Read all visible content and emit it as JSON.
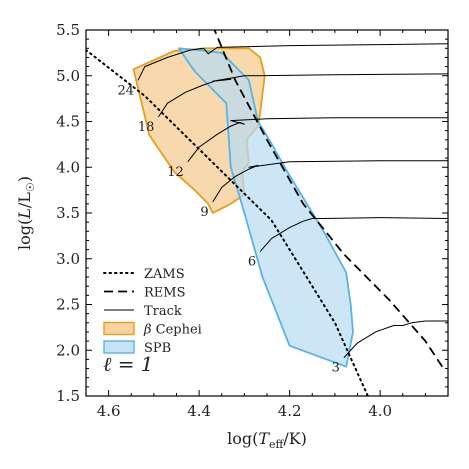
{
  "chart_data": {
    "type": "line",
    "xlabel": "log(T_eff/K)",
    "ylabel": "log(L/L☉)",
    "xlim": [
      4.65,
      3.85
    ],
    "ylim": [
      1.5,
      5.5
    ],
    "x_reversed": true,
    "xticks": [
      4.6,
      4.4,
      4.2,
      4.0
    ],
    "xtick_labels": [
      "4.6",
      "4.4",
      "4.2",
      "4.0"
    ],
    "yticks": [
      1.5,
      2.0,
      2.5,
      3.0,
      3.5,
      4.0,
      4.5,
      5.0,
      5.5
    ],
    "ytick_labels": [
      "1.5",
      "2.0",
      "2.5",
      "3.0",
      "3.5",
      "4.0",
      "4.5",
      "5.0",
      "5.5"
    ],
    "annotation": "ℓ = 1",
    "legend": {
      "placement": "bottom-left",
      "entries": [
        {
          "label": "ZAMS",
          "style": "dotted"
        },
        {
          "label": "REMS",
          "style": "dashed"
        },
        {
          "label": "Track",
          "style": "solid"
        },
        {
          "label": "β Cephei",
          "style": "patch",
          "fill": "#f5c78a",
          "edge": "#e3a020"
        },
        {
          "label": "SPB",
          "style": "patch",
          "fill": "#b7dcf2",
          "edge": "#5ab3e3"
        }
      ]
    },
    "series": [
      {
        "name": "ZAMS",
        "style": "dotted",
        "x": [
          4.66,
          4.52,
          4.38,
          4.24,
          4.1,
          4.02
        ],
        "y": [
          5.32,
          4.78,
          4.1,
          3.42,
          2.3,
          1.42
        ]
      },
      {
        "name": "REMS",
        "style": "dashed",
        "x": [
          4.37,
          4.32,
          4.25,
          4.17,
          4.08,
          3.98,
          3.9,
          3.86
        ],
        "y": [
          5.55,
          4.95,
          4.3,
          3.6,
          3.05,
          2.55,
          2.1,
          1.8
        ]
      },
      {
        "name": "Track",
        "style": "solid",
        "label": "24",
        "x": [
          4.535,
          4.52,
          4.47,
          4.42,
          4.39,
          4.38,
          4.36,
          4.2,
          4.0,
          3.85
        ],
        "y": [
          4.95,
          5.1,
          5.2,
          5.28,
          5.3,
          5.24,
          5.31,
          5.33,
          5.34,
          5.35
        ]
      },
      {
        "name": "Track",
        "style": "solid",
        "label": "18",
        "x": [
          4.49,
          4.47,
          4.43,
          4.39,
          4.36,
          4.33,
          4.37,
          4.3,
          4.1,
          3.85
        ],
        "y": [
          4.55,
          4.7,
          4.82,
          4.9,
          4.95,
          4.96,
          4.94,
          5.0,
          5.01,
          5.02
        ]
      },
      {
        "name": "Track",
        "style": "solid",
        "label": "12",
        "x": [
          4.425,
          4.4,
          4.36,
          4.33,
          4.31,
          4.3,
          4.33,
          4.25,
          4.1,
          3.85
        ],
        "y": [
          4.06,
          4.22,
          4.36,
          4.45,
          4.49,
          4.47,
          4.51,
          4.53,
          4.54,
          4.54
        ]
      },
      {
        "name": "Track",
        "style": "solid",
        "label": "9",
        "x": [
          4.37,
          4.35,
          4.32,
          4.29,
          4.27,
          4.29,
          4.2,
          4.0,
          3.85
        ],
        "y": [
          3.62,
          3.78,
          3.9,
          3.98,
          4.02,
          4.0,
          4.06,
          4.07,
          4.07
        ]
      },
      {
        "name": "Track",
        "style": "solid",
        "label": "6",
        "x": [
          4.265,
          4.24,
          4.2,
          4.17,
          4.15,
          4.13,
          4.0,
          3.85
        ],
        "y": [
          3.08,
          3.22,
          3.34,
          3.41,
          3.44,
          3.44,
          3.45,
          3.44
        ]
      },
      {
        "name": "Track",
        "style": "solid",
        "label": "3",
        "x": [
          4.08,
          4.05,
          4.01,
          3.97,
          3.95,
          3.93,
          3.9,
          3.85
        ],
        "y": [
          1.92,
          2.08,
          2.2,
          2.27,
          2.27,
          2.3,
          2.32,
          2.32
        ]
      }
    ],
    "regions": [
      {
        "name": "β Cephei",
        "fill": "#f5c78a",
        "edge": "#e3a020",
        "x": [
          4.545,
          4.455,
          4.385,
          4.29,
          4.265,
          4.255,
          4.265,
          4.27,
          4.295,
          4.29,
          4.305,
          4.3,
          4.33,
          4.35,
          4.37,
          4.38,
          4.41,
          4.455,
          4.51,
          4.545
        ],
        "y": [
          5.07,
          5.27,
          5.3,
          5.3,
          5.2,
          5.0,
          4.6,
          4.45,
          4.3,
          4.05,
          3.95,
          3.7,
          3.6,
          3.55,
          3.5,
          3.6,
          3.75,
          3.95,
          4.35,
          5.07
        ]
      },
      {
        "name": "SPB",
        "fill": "#b7dcf2",
        "edge": "#5ab3e3",
        "x": [
          4.445,
          4.4,
          4.35,
          4.29,
          4.27,
          4.245,
          4.205,
          4.125,
          4.075,
          4.065,
          4.06,
          4.075,
          4.2,
          4.26,
          4.3,
          4.33,
          4.34,
          4.41,
          4.445
        ],
        "y": [
          5.3,
          5.28,
          5.25,
          4.95,
          4.5,
          4.3,
          3.95,
          3.3,
          2.85,
          2.5,
          2.2,
          1.82,
          2.05,
          2.8,
          3.5,
          4.0,
          4.7,
          5.05,
          5.3
        ]
      }
    ]
  }
}
